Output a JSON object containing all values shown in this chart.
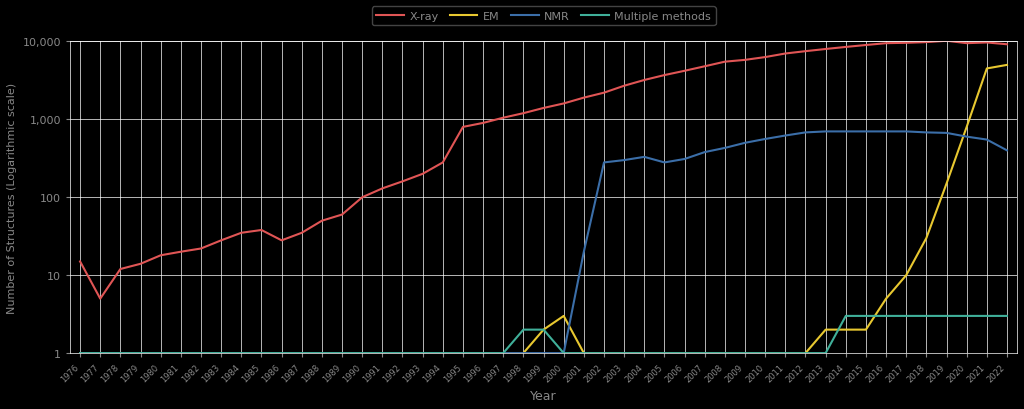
{
  "years": [
    1976,
    1977,
    1978,
    1979,
    1980,
    1981,
    1982,
    1983,
    1984,
    1985,
    1986,
    1987,
    1988,
    1989,
    1990,
    1991,
    1992,
    1993,
    1994,
    1995,
    1996,
    1997,
    1998,
    1999,
    2000,
    2001,
    2002,
    2003,
    2004,
    2005,
    2006,
    2007,
    2008,
    2009,
    2010,
    2011,
    2012,
    2013,
    2014,
    2015,
    2016,
    2017,
    2018,
    2019,
    2020,
    2021,
    2022
  ],
  "xray": [
    15,
    5,
    12,
    14,
    18,
    20,
    22,
    28,
    35,
    38,
    28,
    35,
    50,
    60,
    100,
    130,
    160,
    200,
    280,
    800,
    900,
    1050,
    1200,
    1400,
    1600,
    1900,
    2200,
    2700,
    3200,
    3700,
    4200,
    4800,
    5500,
    5800,
    6300,
    7000,
    7500,
    8000,
    8500,
    9000,
    9500,
    9600,
    9800,
    10200,
    9500,
    9700,
    9200
  ],
  "em": [
    1,
    1,
    1,
    1,
    1,
    1,
    1,
    1,
    1,
    1,
    1,
    1,
    1,
    1,
    1,
    1,
    1,
    1,
    1,
    1,
    1,
    1,
    1,
    2,
    3,
    1,
    1,
    1,
    1,
    1,
    1,
    1,
    1,
    1,
    1,
    1,
    1,
    2,
    2,
    2,
    5,
    10,
    30,
    150,
    800,
    4500,
    5000
  ],
  "nmr": [
    1,
    1,
    1,
    1,
    1,
    1,
    1,
    1,
    1,
    1,
    1,
    1,
    1,
    1,
    1,
    1,
    1,
    1,
    1,
    1,
    1,
    1,
    1,
    1,
    1,
    20,
    280,
    300,
    330,
    280,
    310,
    380,
    430,
    500,
    560,
    620,
    680,
    700,
    700,
    700,
    700,
    700,
    680,
    670,
    600,
    550,
    400
  ],
  "multiple": [
    1,
    1,
    1,
    1,
    1,
    1,
    1,
    1,
    1,
    1,
    1,
    1,
    1,
    1,
    1,
    1,
    1,
    1,
    1,
    1,
    1,
    1,
    2,
    2,
    1,
    1,
    1,
    1,
    1,
    1,
    1,
    1,
    1,
    1,
    1,
    1,
    1,
    1,
    3,
    3,
    3,
    3,
    3,
    3,
    3,
    3,
    3
  ],
  "xray_color": "#e05555",
  "em_color": "#e8c830",
  "nmr_color": "#3b6ea8",
  "multiple_color": "#40b09a",
  "bg_color": "#000000",
  "grid_color": "#ffffff",
  "text_color": "#888888",
  "xlabel": "Year",
  "ylabel": "Number of Structures (Logarithmic scale)",
  "legend_labels": [
    "X-ray",
    "EM",
    "NMR",
    "Multiple methods"
  ]
}
